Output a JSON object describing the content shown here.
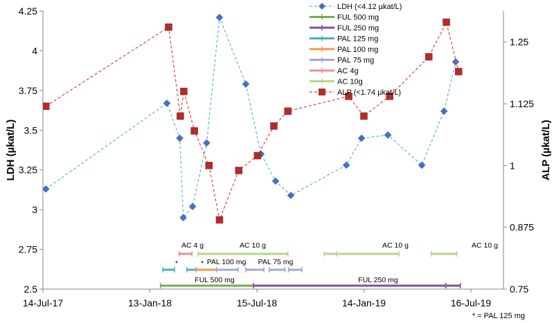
{
  "chart_data": {
    "type": "line",
    "x_ticks": [
      "14-Jul-17",
      "13-Jan-18",
      "15-Jul-18",
      "14-Jan-19",
      "16-Jul-19"
    ],
    "x_tick_days": [
      0,
      183,
      366,
      549,
      732
    ],
    "ylabel_left": "LDH (µkat/L)",
    "ylabel_right": "ALP (µkat/L)",
    "ylim_left": [
      2.5,
      4.25
    ],
    "ylim_right": [
      0.75,
      1.3125
    ],
    "yticks_left": [
      "2.5",
      "2.75",
      "3",
      "3.25",
      "3.5",
      "3.75",
      "4",
      "4.25"
    ],
    "yticks_right": [
      "0.75",
      "0.875",
      "1",
      "1.125",
      "1.25"
    ],
    "series": [
      {
        "name": "LDH (<4.12 µkat/L)",
        "axis": "left",
        "color": "#4472c4",
        "line_color": "#5bb4e0",
        "marker": "diamond",
        "points": [
          [
            5,
            3.13
          ],
          [
            212,
            3.67
          ],
          [
            234,
            3.45
          ],
          [
            240,
            2.95
          ],
          [
            256,
            3.02
          ],
          [
            280,
            3.42
          ],
          [
            302,
            4.21
          ],
          [
            347,
            3.79
          ],
          [
            373,
            3.35
          ],
          [
            398,
            3.18
          ],
          [
            424,
            3.09
          ],
          [
            519,
            3.28
          ],
          [
            545,
            3.45
          ],
          [
            590,
            3.47
          ],
          [
            648,
            3.28
          ],
          [
            686,
            3.62
          ],
          [
            706,
            3.93
          ]
        ]
      },
      {
        "name": "ALP (<1.74 µkat/L)",
        "axis": "right",
        "color": "#b22c2c",
        "line_color": "#e04040",
        "marker": "square",
        "points": [
          [
            5,
            1.12
          ],
          [
            215,
            1.28
          ],
          [
            235,
            1.1
          ],
          [
            241,
            1.15
          ],
          [
            259,
            1.07
          ],
          [
            284,
            1.0
          ],
          [
            302,
            0.89
          ],
          [
            335,
            0.99
          ],
          [
            367,
            1.02
          ],
          [
            395,
            1.08
          ],
          [
            419,
            1.11
          ],
          [
            523,
            1.14
          ],
          [
            549,
            1.1
          ],
          [
            593,
            1.14
          ],
          [
            660,
            1.22
          ],
          [
            690,
            1.29
          ],
          [
            711,
            1.19
          ]
        ]
      }
    ],
    "treatments": [
      {
        "name": "FUL 500 mg",
        "color": "#70ad47",
        "segments": [
          [
            201,
            360
          ]
        ]
      },
      {
        "name": "FUL 250 mg",
        "color": "#7e4f9e",
        "segments": [
          [
            360,
            689
          ],
          [
            689,
            714
          ]
        ]
      },
      {
        "name": "PAL 125 mg",
        "color": "#4bacc6",
        "segments": [
          [
            205,
            225
          ],
          [
            246,
            262
          ]
        ]
      },
      {
        "name": "PAL 100 mg",
        "color": "#f79646",
        "segments": [
          [
            262,
            297
          ]
        ]
      },
      {
        "name": "PAL 75 mg",
        "color": "#9fa8da",
        "segments": [
          [
            297,
            334
          ],
          [
            347,
            378
          ],
          [
            387,
            414
          ],
          [
            420,
            443
          ]
        ]
      },
      {
        "name": "AC 4g",
        "color": "#e6928c",
        "segments": [
          [
            233,
            255
          ]
        ]
      },
      {
        "name": "AC 10g",
        "color": "#b5d68a",
        "segments": [
          [
            265,
            419
          ],
          [
            481,
            502
          ],
          [
            502,
            609
          ],
          [
            664,
            708
          ]
        ]
      }
    ],
    "annotations": [
      "AC 4 g",
      "AC 10 g",
      "AC 10 g",
      "AC 10 g",
      "PAL 100 mg",
      "PAL 75 mg",
      "FUL 500 mg",
      "FUL 250 mg",
      "*",
      "*"
    ],
    "footnote": "* = PAL 125 mg",
    "legend_position": "top-right"
  }
}
